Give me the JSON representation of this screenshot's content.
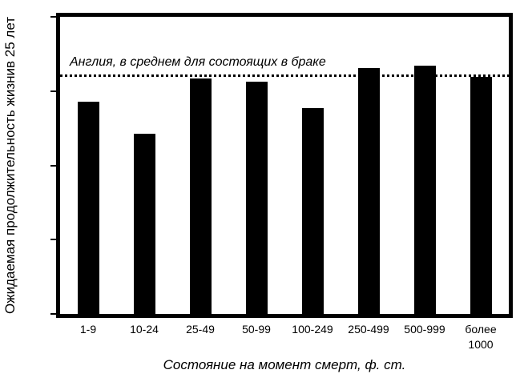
{
  "figure": {
    "background": "#ffffff",
    "text_color": "#000000"
  },
  "chart_data": {
    "type": "bar",
    "title": "",
    "categories": [
      "1-9",
      "10-24",
      "25-49",
      "50-99",
      "100-249",
      "250-499",
      "500-999",
      "более 1000"
    ],
    "values": [
      28.6,
      24.3,
      31.7,
      31.3,
      27.7,
      33.1,
      33.4,
      31.9
    ],
    "xlabel": "Состояние на момент смерт, ф. ст.",
    "ylabel": "Ожидаемая продолжительность жизнив 25 лет",
    "ylim": [
      0,
      40
    ],
    "yticks": [
      0,
      10,
      20,
      30,
      40
    ],
    "bar_color": "#000000",
    "axis_color": "#000000",
    "grid": false,
    "legend_position": "none",
    "reference_line": {
      "value": 32,
      "label": "Англия, в среднем для состоящих в браке",
      "style": "dotted",
      "color": "#000000"
    }
  }
}
